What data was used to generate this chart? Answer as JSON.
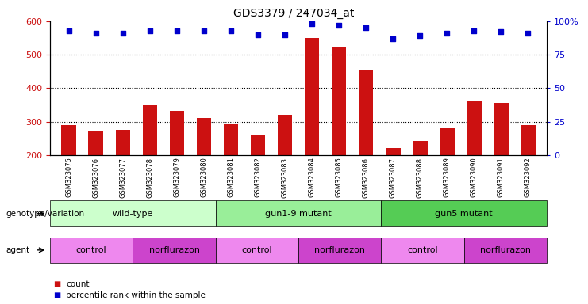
{
  "title": "GDS3379 / 247034_at",
  "samples": [
    "GSM323075",
    "GSM323076",
    "GSM323077",
    "GSM323078",
    "GSM323079",
    "GSM323080",
    "GSM323081",
    "GSM323082",
    "GSM323083",
    "GSM323084",
    "GSM323085",
    "GSM323086",
    "GSM323087",
    "GSM323088",
    "GSM323089",
    "GSM323090",
    "GSM323091",
    "GSM323092"
  ],
  "counts": [
    290,
    272,
    275,
    350,
    332,
    310,
    295,
    262,
    320,
    550,
    525,
    453,
    222,
    242,
    280,
    360,
    355,
    290
  ],
  "percentile_ranks": [
    93,
    91,
    91,
    93,
    93,
    93,
    93,
    90,
    90,
    98,
    97,
    95,
    87,
    89,
    91,
    93,
    92,
    91
  ],
  "bar_color": "#cc1111",
  "dot_color": "#0000cc",
  "ylim_left": [
    200,
    600
  ],
  "ylim_right": [
    0,
    100
  ],
  "yticks_left": [
    200,
    300,
    400,
    500,
    600
  ],
  "yticks_right": [
    0,
    25,
    50,
    75,
    100
  ],
  "ytick_labels_right": [
    "0",
    "25",
    "50",
    "75",
    "100%"
  ],
  "grid_values": [
    300,
    400,
    500
  ],
  "genotype_groups": [
    {
      "label": "wild-type",
      "start": 0,
      "end": 5,
      "color": "#ccffcc"
    },
    {
      "label": "gun1-9 mutant",
      "start": 6,
      "end": 11,
      "color": "#99ee99"
    },
    {
      "label": "gun5 mutant",
      "start": 12,
      "end": 17,
      "color": "#55cc55"
    }
  ],
  "agent_groups": [
    {
      "label": "control",
      "start": 0,
      "end": 2,
      "color": "#ee88ee"
    },
    {
      "label": "norflurazon",
      "start": 3,
      "end": 5,
      "color": "#cc44cc"
    },
    {
      "label": "control",
      "start": 6,
      "end": 8,
      "color": "#ee88ee"
    },
    {
      "label": "norflurazon",
      "start": 9,
      "end": 11,
      "color": "#cc44cc"
    },
    {
      "label": "control",
      "start": 12,
      "end": 14,
      "color": "#ee88ee"
    },
    {
      "label": "norflurazon",
      "start": 15,
      "end": 17,
      "color": "#cc44cc"
    }
  ],
  "legend_count_label": "count",
  "legend_percentile_label": "percentile rank within the sample",
  "genotype_row_label": "genotype/variation",
  "agent_row_label": "agent",
  "background_color": "#ffffff"
}
